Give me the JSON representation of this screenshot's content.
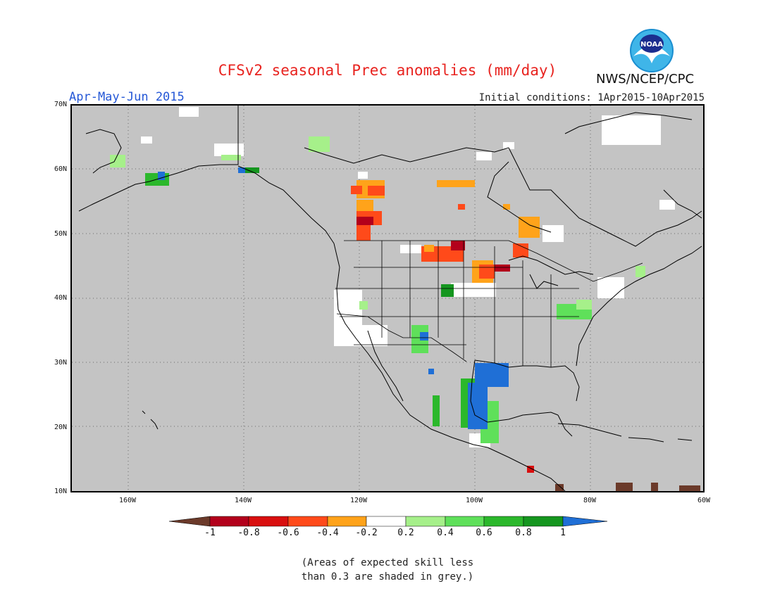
{
  "header": {
    "title": "CFSv2 seasonal Prec anomalies (mm/day)",
    "period": "Apr-May-Jun 2015",
    "initial_conditions": "Initial conditions: 1Apr2015-10Apr2015",
    "agency": "NWS/NCEP/CPC",
    "logo_text": "NOAA"
  },
  "axes": {
    "lat_labels": [
      "70N",
      "60N",
      "50N",
      "40N",
      "30N",
      "20N",
      "10N"
    ],
    "lon_labels": [
      "160W",
      "140W",
      "120W",
      "100W",
      "80W",
      "60W"
    ]
  },
  "colorbar": {
    "labels": [
      "-1",
      "-0.8",
      "-0.6",
      "-0.4",
      "-0.2",
      "0.2",
      "0.4",
      "0.6",
      "0.8",
      "1"
    ],
    "colors": [
      "#6b3a2a",
      "#b3001b",
      "#d90f0f",
      "#ff4a1a",
      "#ffa31a",
      "#ffffff",
      "#a6f08a",
      "#5fe05a",
      "#2bb82b",
      "#15961f",
      "#1f6fd6"
    ]
  },
  "footnote": {
    "line1": "(Areas of expected skill less",
    "line2": "than 0.3 are shaded in grey.)"
  },
  "map_style": {
    "background": "#c4c4c4",
    "coast_color": "#000000",
    "grid_color": "#555555"
  }
}
